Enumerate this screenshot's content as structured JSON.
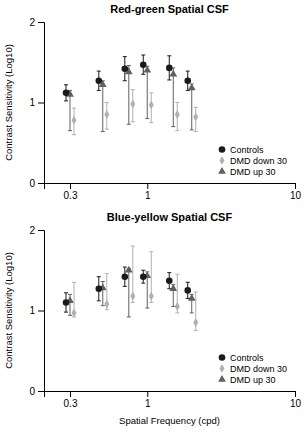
{
  "chart_data": [
    {
      "type": "scatter",
      "title": "Red-green Spatial CSF",
      "ylabel": "Contrast Sensitivity (Log10)",
      "log": "x",
      "x": [
        0.3,
        0.5,
        0.75,
        1.0,
        1.5,
        2.0
      ],
      "xlim": [
        0.2,
        10
      ],
      "xticks": [
        0.3,
        1,
        10
      ],
      "ylim": [
        0,
        2
      ],
      "yticks": [
        0,
        1,
        2
      ],
      "legend": "lower right",
      "series": [
        {
          "name": "Controls",
          "color": "#1a1a1a",
          "marker": "circle",
          "values": [
            1.12,
            1.27,
            1.42,
            1.47,
            1.43,
            1.27
          ],
          "err_lo": [
            0.1,
            0.12,
            0.15,
            0.12,
            0.15,
            0.12
          ],
          "err_hi": [
            0.1,
            0.12,
            0.15,
            0.12,
            0.15,
            0.12
          ]
        },
        {
          "name": "DMD down 30",
          "color": "#b0b0b0",
          "marker": "diamond",
          "values": [
            0.78,
            0.85,
            0.98,
            0.97,
            0.85,
            0.82
          ],
          "err_lo": [
            0.18,
            0.18,
            0.22,
            0.22,
            0.2,
            0.18
          ],
          "err_hi": [
            0.15,
            0.15,
            0.18,
            0.15,
            0.15,
            0.12
          ]
        },
        {
          "name": "DMD up 30",
          "color": "#606060",
          "marker": "triangle",
          "values": [
            1.1,
            1.22,
            1.38,
            1.4,
            1.35,
            1.18
          ],
          "err_lo": [
            0.45,
            0.58,
            0.65,
            0.6,
            0.65,
            0.52
          ],
          "err_hi": [
            0.05,
            0.05,
            0.08,
            0.05,
            0.08,
            0.05
          ]
        }
      ]
    },
    {
      "type": "scatter",
      "title": "Blue-yellow Spatial CSF",
      "xlabel": "Spatial Frequency (cpd)",
      "ylabel": "Contrast Sensitivity (Log10)",
      "log": "x",
      "x": [
        0.3,
        0.5,
        0.75,
        1.0,
        1.5,
        2.0
      ],
      "xlim": [
        0.2,
        10
      ],
      "xticks": [
        0.3,
        1,
        10
      ],
      "ylim": [
        0,
        2
      ],
      "yticks": [
        0,
        1,
        2
      ],
      "legend": "lower right",
      "series": [
        {
          "name": "Controls",
          "color": "#1a1a1a",
          "marker": "circle",
          "values": [
            1.1,
            1.27,
            1.42,
            1.42,
            1.37,
            1.25
          ],
          "err_lo": [
            0.12,
            0.15,
            0.12,
            0.08,
            0.1,
            0.1
          ],
          "err_hi": [
            0.12,
            0.15,
            0.12,
            0.08,
            0.1,
            0.1
          ]
        },
        {
          "name": "DMD down 30",
          "color": "#b0b0b0",
          "marker": "diamond",
          "values": [
            0.97,
            1.08,
            1.18,
            1.18,
            1.05,
            0.85
          ],
          "err_lo": [
            0.05,
            0.07,
            0.08,
            0.08,
            0.08,
            0.1
          ],
          "err_hi": [
            0.38,
            0.38,
            0.62,
            0.55,
            0.4,
            0.38
          ]
        },
        {
          "name": "DMD up 30",
          "color": "#606060",
          "marker": "triangle",
          "values": [
            1.12,
            1.28,
            1.5,
            1.43,
            1.27,
            1.15
          ],
          "err_lo": [
            0.18,
            0.22,
            0.58,
            0.4,
            0.22,
            0.18
          ],
          "err_hi": [
            0.08,
            0.08,
            0.02,
            0.05,
            0.05,
            0.05
          ]
        }
      ]
    }
  ]
}
